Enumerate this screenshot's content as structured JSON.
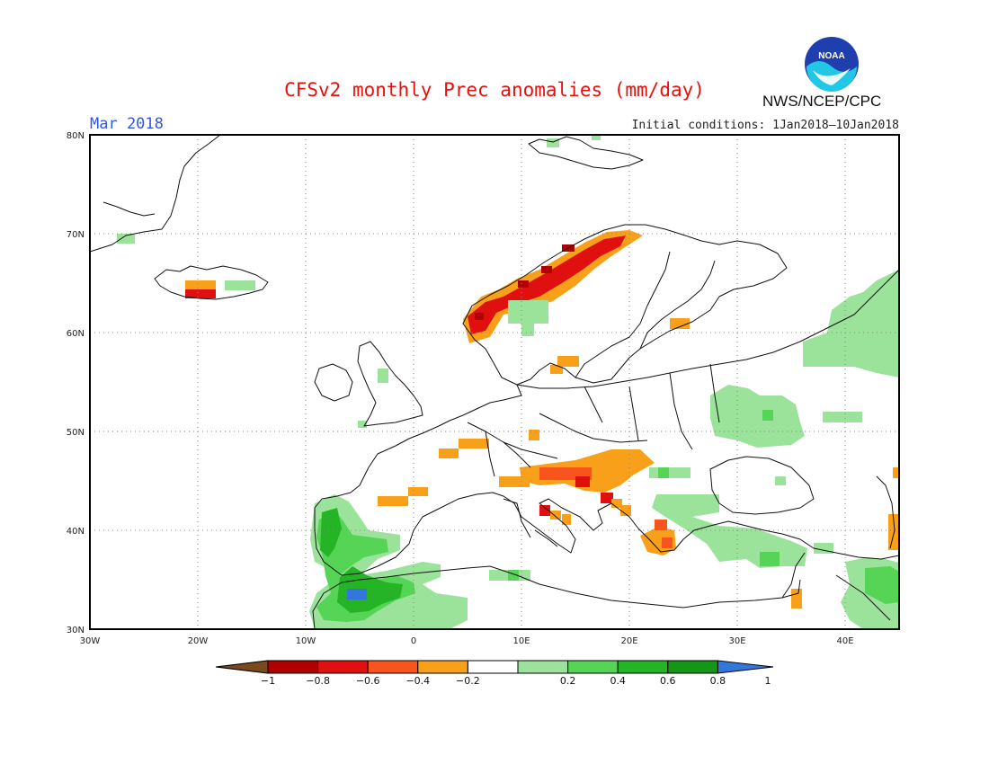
{
  "title": "CFSv2 monthly Prec anomalies (mm/day)",
  "month": "Mar 2018",
  "organization": "NWS/NCEP/CPC",
  "logo_text": "NOAA",
  "initial_conditions": "Initial conditions: 1Jan2018–10Jan2018",
  "map": {
    "lon_range": [
      -30,
      45
    ],
    "lat_range": [
      30,
      80
    ],
    "lat_labels": [
      "80N",
      "70N",
      "60N",
      "50N",
      "40N",
      "30N"
    ],
    "lon_labels": [
      "30W",
      "20W",
      "10W",
      "0",
      "10E",
      "20E",
      "30E",
      "40E"
    ],
    "grid": "dotted",
    "features": [
      {
        "name": "negative-anomaly-norway-coast",
        "category": -0.6
      },
      {
        "name": "negative-anomaly-northern-norway",
        "category": -0.8
      },
      {
        "name": "negative-anomaly-iceland",
        "category": -0.6
      },
      {
        "name": "negative-anomaly-adriatic",
        "category": -0.6
      },
      {
        "name": "negative-anomaly-alps-balkans",
        "category": -0.4
      },
      {
        "name": "negative-anomaly-greece",
        "category": -0.4
      },
      {
        "name": "positive-anomaly-iberia-morocco",
        "category": 0.6
      },
      {
        "name": "positive-anomaly-morocco-peak",
        "category": 1.0
      },
      {
        "name": "positive-anomaly-ukraine",
        "category": 0.2
      },
      {
        "name": "positive-anomaly-russia",
        "category": 0.2
      },
      {
        "name": "positive-anomaly-turkey",
        "category": 0.4
      },
      {
        "name": "positive-anomaly-middle-east",
        "category": 0.4
      }
    ]
  },
  "colorbar": {
    "ticks": [
      "−1",
      "−0.8",
      "−0.6",
      "−0.4",
      "−0.2",
      "0.2",
      "0.4",
      "0.6",
      "0.8",
      "1"
    ],
    "colors": [
      "#7a4a1e",
      "#b20000",
      "#e01010",
      "#f7541e",
      "#f9a01a",
      "#ffffff",
      "#9be29b",
      "#55d455",
      "#25b425",
      "#169616",
      "#3377dd"
    ]
  }
}
